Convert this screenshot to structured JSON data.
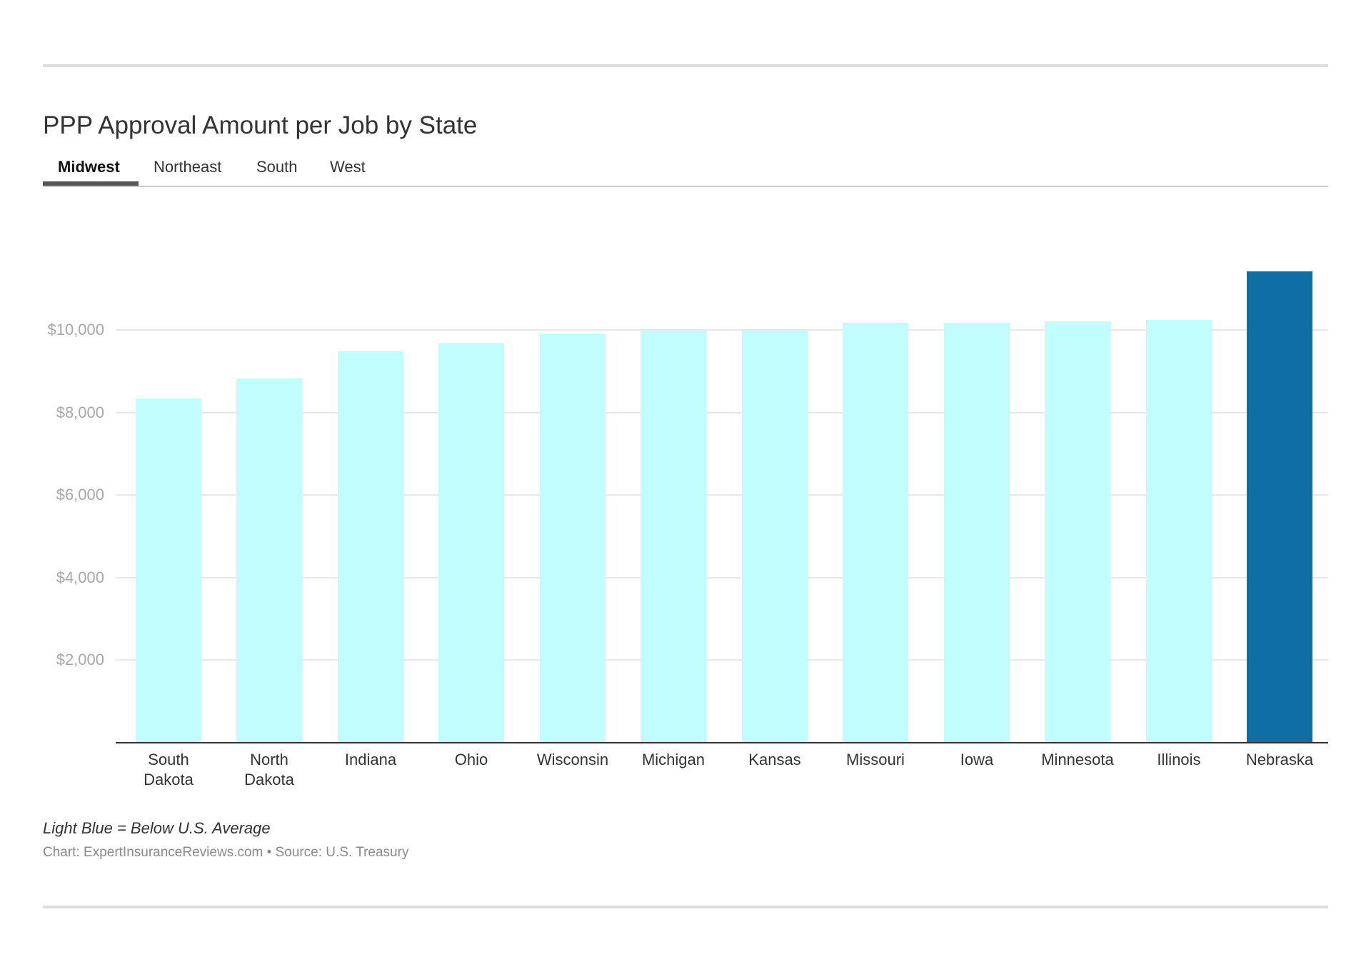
{
  "header": {
    "title": "PPP Approval Amount per Job by State"
  },
  "tabs": [
    {
      "label": "Midwest",
      "active": true
    },
    {
      "label": "Northeast",
      "active": false
    },
    {
      "label": "South",
      "active": false
    },
    {
      "label": "West",
      "active": false
    }
  ],
  "footer": {
    "note": "Light Blue = Below U.S. Average",
    "source": "Chart: ExpertInsuranceReviews.com • Source: U.S. Treasury"
  },
  "colors": {
    "below_average": "#c2fdfd",
    "above_average": "#106ea7",
    "gridline": "#e8e8e8",
    "axis": "#333333",
    "tick_label": "#a8a8a8",
    "active_tab_indicator": "#555555"
  },
  "chart_data": {
    "type": "bar",
    "title": "PPP Approval Amount per Job by State",
    "subtitle": "Midwest",
    "xlabel": "",
    "ylabel": "",
    "categories": [
      "South Dakota",
      "North Dakota",
      "Indiana",
      "Ohio",
      "Wisconsin",
      "Michigan",
      "Kansas",
      "Missouri",
      "Iowa",
      "Minnesota",
      "Illinois",
      "Nebraska"
    ],
    "category_lines": [
      [
        "South",
        "Dakota"
      ],
      [
        "North",
        "Dakota"
      ],
      [
        "Indiana"
      ],
      [
        "Ohio"
      ],
      [
        "Wisconsin"
      ],
      [
        "Michigan"
      ],
      [
        "Kansas"
      ],
      [
        "Missouri"
      ],
      [
        "Iowa"
      ],
      [
        "Minnesota"
      ],
      [
        "Illinois"
      ],
      [
        "Nebraska"
      ]
    ],
    "values": [
      8340,
      8820,
      9480,
      9690,
      9900,
      9990,
      9990,
      10170,
      10170,
      10200,
      10240,
      11420
    ],
    "above_us_average": [
      false,
      false,
      false,
      false,
      false,
      false,
      false,
      false,
      false,
      false,
      false,
      true
    ],
    "ylim": [
      0,
      12000
    ],
    "yticks": [
      2000,
      4000,
      6000,
      8000,
      10000
    ],
    "ytick_labels": [
      "$2,000",
      "$4,000",
      "$6,000",
      "$8,000",
      "$10,000"
    ],
    "grid": true,
    "legend": "Light Blue = Below U.S. Average",
    "annotations": [
      "Chart: ExpertInsuranceReviews.com • Source: U.S. Treasury"
    ]
  }
}
